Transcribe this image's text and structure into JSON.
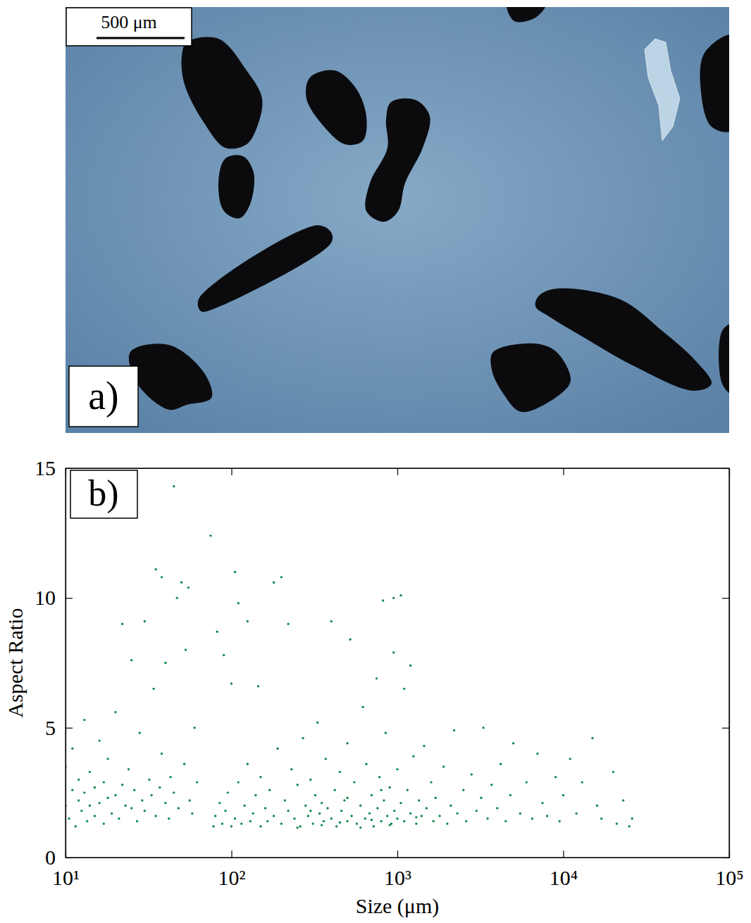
{
  "panel_a": {
    "label": "a)",
    "scale_bar": "500 μm"
  },
  "chart_data": {
    "type": "scatter",
    "panel_label": "b)",
    "x_label": "Size (μm)",
    "y_label": "Aspect Ratio",
    "log": "x",
    "color": "#108a46",
    "marker": "dot",
    "xlim": [
      10,
      100000
    ],
    "xticks": [
      {
        "value": 10,
        "label": "10¹"
      },
      {
        "value": 100,
        "label": "10²"
      },
      {
        "value": 1000,
        "label": "10³"
      },
      {
        "value": 10000,
        "label": "10⁴"
      },
      {
        "value": 100000,
        "label": "10⁵"
      }
    ],
    "ylim": [
      0,
      15
    ],
    "yticks": [
      0,
      5,
      10,
      15
    ],
    "x": [
      10,
      10,
      10.5,
      11,
      11,
      11.5,
      12,
      12,
      12.5,
      13,
      13,
      13.5,
      14,
      14,
      15,
      15,
      16,
      16,
      17,
      17,
      18,
      18,
      19,
      20,
      20,
      21,
      22,
      22,
      23,
      24,
      25,
      25,
      26,
      27,
      28,
      29,
      30,
      30,
      32,
      33,
      34,
      35,
      35,
      37,
      38,
      38,
      40,
      40,
      42,
      43,
      45,
      45,
      47,
      48,
      50,
      52,
      53,
      55,
      56,
      58,
      60,
      62,
      75,
      78,
      80,
      82,
      85,
      88,
      90,
      92,
      95,
      100,
      100,
      105,
      105,
      110,
      110,
      115,
      120,
      125,
      125,
      130,
      135,
      140,
      145,
      150,
      150,
      160,
      165,
      170,
      180,
      180,
      190,
      200,
      200,
      210,
      220,
      220,
      230,
      240,
      250,
      260,
      270,
      280,
      290,
      300,
      310,
      320,
      330,
      340,
      350,
      360,
      370,
      380,
      400,
      400,
      420,
      430,
      450,
      460,
      480,
      500,
      500,
      520,
      530,
      550,
      570,
      600,
      620,
      640,
      650,
      680,
      700,
      720,
      750,
      760,
      780,
      800,
      820,
      830,
      850,
      870,
      900,
      920,
      950,
      950,
      960,
      1000,
      1000,
      1050,
      1050,
      1100,
      1100,
      1150,
      1200,
      1200,
      1250,
      1300,
      1350,
      1400,
      1450,
      1500,
      1600,
      1650,
      1700,
      1800,
      1900,
      2000,
      2100,
      2200,
      2300,
      2500,
      2600,
      2800,
      3000,
      3200,
      3300,
      3500,
      3700,
      4000,
      4200,
      4500,
      4800,
      5000,
      5500,
      6000,
      6500,
      7000,
      7500,
      8000,
      9000,
      9500,
      10000,
      11000,
      12000,
      13000,
      15000,
      16000,
      17000,
      20000,
      21000,
      23000,
      25000,
      26000,
      250,
      350,
      450,
      600,
      700,
      900,
      1300,
      800,
      500,
      300
    ],
    "values": [
      2.0,
      3.5,
      1.5,
      2.6,
      4.2,
      1.2,
      2.2,
      3.0,
      1.8,
      2.5,
      5.3,
      1.4,
      2.0,
      3.3,
      2.7,
      1.6,
      2.1,
      4.5,
      1.3,
      2.9,
      2.3,
      3.8,
      1.7,
      2.4,
      5.6,
      1.5,
      2.8,
      9.0,
      2.0,
      3.4,
      1.9,
      7.6,
      2.6,
      1.4,
      4.8,
      2.2,
      9.1,
      1.8,
      3.0,
      2.4,
      6.5,
      11.1,
      1.6,
      2.7,
      10.8,
      4.0,
      2.1,
      7.5,
      1.5,
      3.1,
      14.3,
      2.5,
      10.0,
      1.9,
      10.6,
      3.6,
      8.0,
      10.4,
      2.2,
      1.7,
      5.0,
      2.9,
      12.4,
      1.2,
      1.6,
      8.7,
      2.1,
      1.3,
      7.8,
      1.8,
      2.5,
      1.2,
      6.7,
      11.0,
      1.5,
      9.8,
      2.9,
      1.3,
      2.0,
      9.1,
      3.6,
      1.4,
      1.7,
      2.4,
      6.6,
      1.2,
      3.1,
      1.9,
      1.4,
      2.6,
      10.6,
      1.6,
      4.2,
      10.8,
      1.3,
      2.2,
      9.0,
      1.8,
      3.4,
      1.5,
      2.8,
      1.2,
      4.6,
      2.0,
      1.6,
      3.0,
      1.3,
      2.4,
      5.2,
      1.7,
      2.1,
      1.4,
      3.8,
      1.9,
      9.1,
      1.5,
      2.6,
      1.2,
      3.3,
      1.8,
      2.2,
      1.4,
      4.4,
      8.4,
      1.6,
      2.9,
      1.3,
      2.0,
      5.8,
      1.5,
      3.6,
      1.7,
      2.4,
      1.2,
      6.9,
      1.9,
      3.1,
      1.4,
      9.9,
      2.2,
      4.8,
      1.6,
      2.7,
      1.3,
      10.0,
      7.9,
      1.8,
      3.4,
      1.5,
      10.1,
      2.1,
      6.5,
      1.4,
      2.6,
      7.4,
      1.7,
      3.9,
      1.3,
      2.2,
      1.6,
      4.3,
      1.9,
      2.9,
      1.4,
      2.3,
      1.6,
      3.5,
      1.3,
      2.0,
      4.9,
      1.7,
      2.6,
      1.4,
      3.2,
      1.8,
      2.3,
      5.0,
      1.5,
      2.8,
      1.9,
      3.6,
      1.4,
      2.4,
      4.4,
      1.7,
      2.9,
      1.5,
      4.0,
      2.1,
      1.6,
      3.1,
      1.4,
      2.4,
      3.8,
      1.7,
      2.9,
      4.6,
      2.0,
      1.5,
      3.3,
      1.3,
      2.2,
      1.2,
      1.5,
      1.15,
      1.25,
      1.35,
      1.15,
      1.45,
      1.25,
      1.55,
      2.6,
      2.3,
      1.8
    ]
  }
}
